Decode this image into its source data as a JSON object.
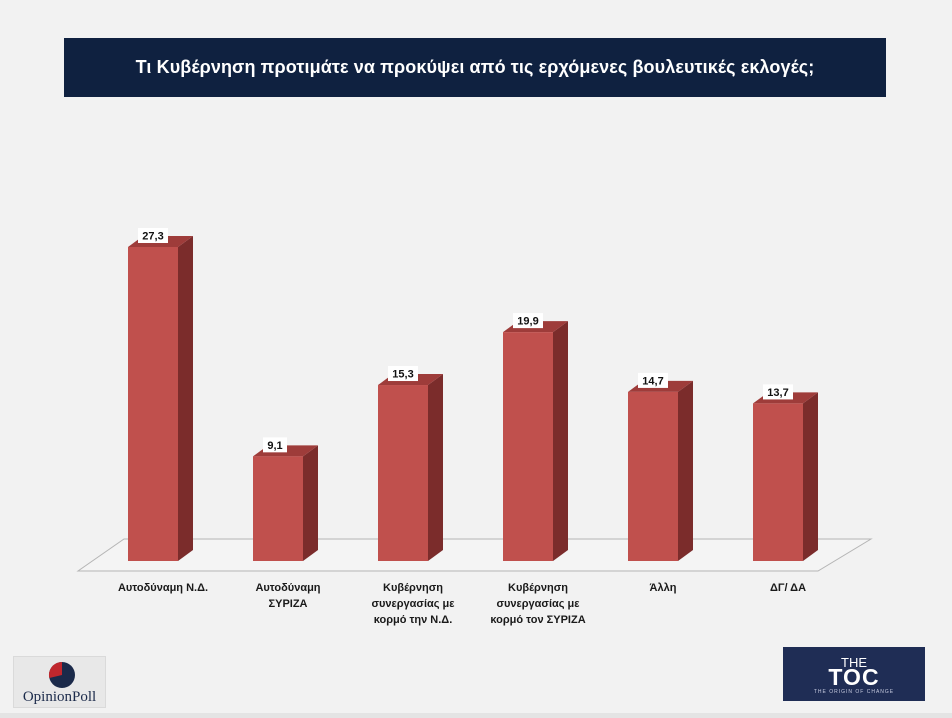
{
  "title": "Τι Κυβέρνηση προτιμάτε να προκύψει από τις ερχόμενες βουλευτικές εκλογές;",
  "chart_data": {
    "type": "bar",
    "categories": [
      "Αυτοδύναμη Ν.Δ.",
      "Αυτοδύναμη ΣΥΡΙΖΑ",
      "Κυβέρνηση συνεργασίας με κορμό την Ν.Δ.",
      "Κυβέρνηση συνεργασίας με κορμό τον ΣΥΡΙΖΑ",
      "Άλλη",
      "ΔΓ/ ΔΑ"
    ],
    "category_lines": [
      [
        "Αυτοδύναμη Ν.Δ."
      ],
      [
        "Αυτοδύναμη",
        "ΣΥΡΙΖΑ"
      ],
      [
        "Κυβέρνηση",
        "συνεργασίας με",
        "κορμό την Ν.Δ."
      ],
      [
        "Κυβέρνηση",
        "συνεργασίας με",
        "κορμό τον ΣΥΡΙΖΑ"
      ],
      [
        "Άλλη"
      ],
      [
        "ΔΓ/ ΔΑ"
      ]
    ],
    "values": [
      27.3,
      9.1,
      15.3,
      19.9,
      14.7,
      13.7
    ],
    "value_labels": [
      "27,3",
      "9,1",
      "15,3",
      "19,9",
      "14,7",
      "13,7"
    ],
    "style": "3d-column",
    "colors": {
      "front": "#c0504d",
      "side": "#7b2c2b",
      "top": "#9e3c3a"
    },
    "grid": false,
    "legend": "none"
  },
  "logos": {
    "left": {
      "text": "OpinionPoll",
      "colors": [
        "#c0272d",
        "#1b2a4a"
      ]
    },
    "right": {
      "line1": "THE",
      "line2": "TOC",
      "line3": "THE ORIGIN OF CHANGE"
    }
  }
}
